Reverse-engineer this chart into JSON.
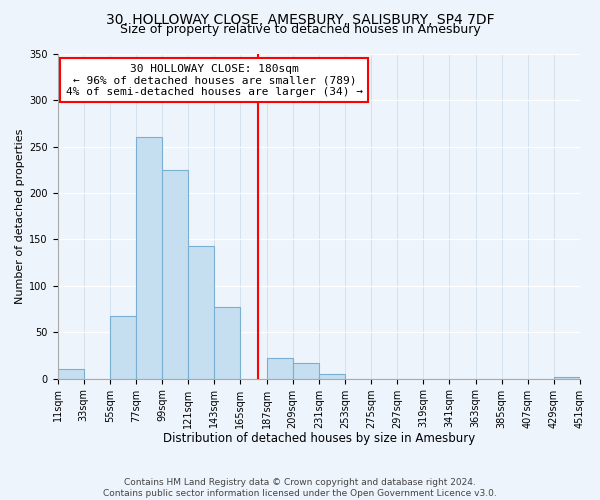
{
  "title": "30, HOLLOWAY CLOSE, AMESBURY, SALISBURY, SP4 7DF",
  "subtitle": "Size of property relative to detached houses in Amesbury",
  "xlabel": "Distribution of detached houses by size in Amesbury",
  "ylabel": "Number of detached properties",
  "bar_color": "#c6dff0",
  "bar_edgecolor": "#7aafd4",
  "bins": [
    11,
    33,
    55,
    77,
    99,
    121,
    143,
    165,
    187,
    209,
    231,
    253,
    275,
    297,
    319,
    341,
    363,
    385,
    407,
    429,
    451
  ],
  "counts": [
    10,
    0,
    68,
    261,
    225,
    143,
    77,
    0,
    22,
    17,
    5,
    0,
    0,
    0,
    0,
    0,
    0,
    0,
    0,
    2
  ],
  "vline_x": 180,
  "vline_color": "red",
  "annotation_title": "30 HOLLOWAY CLOSE: 180sqm",
  "annotation_line1": "← 96% of detached houses are smaller (789)",
  "annotation_line2": "4% of semi-detached houses are larger (34) →",
  "ylim": [
    0,
    350
  ],
  "yticks": [
    0,
    50,
    100,
    150,
    200,
    250,
    300,
    350
  ],
  "footnote1": "Contains HM Land Registry data © Crown copyright and database right 2024.",
  "footnote2": "Contains public sector information licensed under the Open Government Licence v3.0.",
  "title_fontsize": 10,
  "subtitle_fontsize": 9,
  "xlabel_fontsize": 8.5,
  "ylabel_fontsize": 8,
  "tick_fontsize": 7,
  "footnote_fontsize": 6.5,
  "annotation_fontsize": 8,
  "background_color": "#eef4fb"
}
